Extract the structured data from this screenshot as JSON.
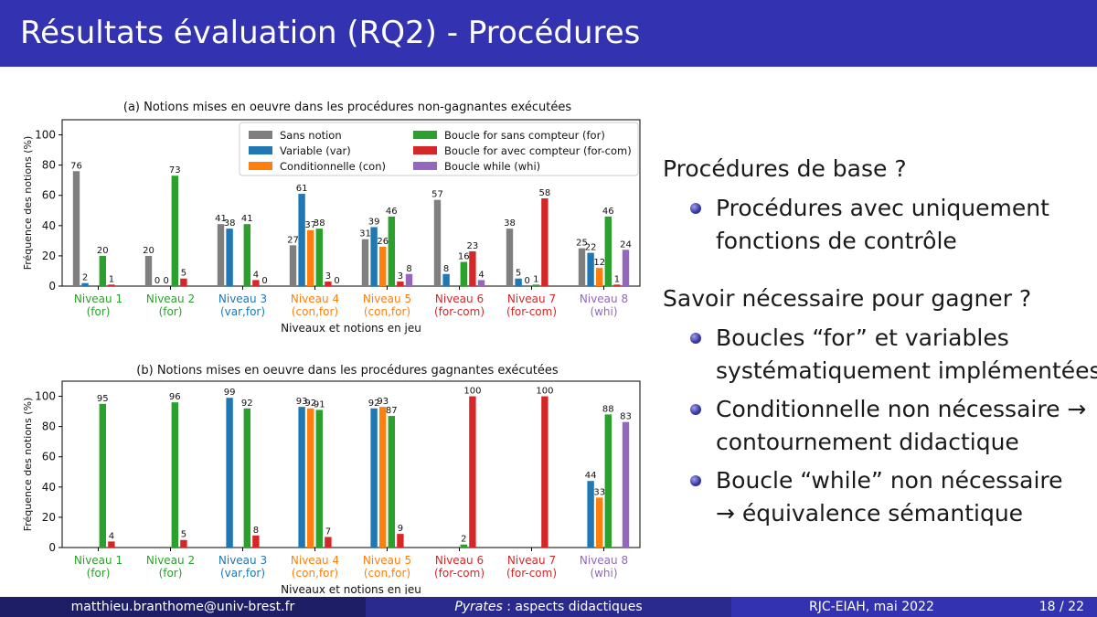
{
  "slide": {
    "title": "Résultats évaluation (RQ2) - Procédures"
  },
  "colors": {
    "header": "#3333b2",
    "sans_notion": "#7f7f7f",
    "var": "#1f77b4",
    "con": "#ff7f0e",
    "for": "#2ca02c",
    "for_com": "#d62728",
    "whi": "#9467bd"
  },
  "right_text": {
    "section1": "Procédures de base ?",
    "bullet1_line1": "Procédures avec uniquement",
    "bullet1_line2": "fonctions de contrôle",
    "section2": "Savoir nécessaire pour gagner ?",
    "bullet2_line1": "Boucles “for” et variables",
    "bullet2_line2": "systématiquement implémentées",
    "bullet3_line1": "Conditionnelle non nécessaire →",
    "bullet3_line2": "contournement didactique",
    "bullet4_line1": "Boucle “while” non nécessaire",
    "bullet4_line2": "→ équivalence sémantique",
    "bullet_icon": "ball-bullet-icon"
  },
  "footer": {
    "email": "matthieu.branthome@univ-brest.fr",
    "talk_italic": "Pyrates",
    "talk_rest": " : aspects didactiques",
    "conference": "RJC-EIAH, mai 2022",
    "page": "18 / 22"
  },
  "chart_data": [
    {
      "type": "bar",
      "title": "(a) Notions mises en oeuvre dans les procédures non-gagnantes exécutées",
      "xlabel": "Niveaux et notions en jeu",
      "ylabel": "Fréquence des notions (%)",
      "ylim": [
        0,
        110
      ],
      "yticks": [
        0,
        20,
        40,
        60,
        80,
        100
      ],
      "grid": false,
      "legend": "top-center",
      "categories": [
        {
          "line1": "Niveau 1",
          "line2": "(for)",
          "color": "#2ca02c"
        },
        {
          "line1": "Niveau 2",
          "line2": "(for)",
          "color": "#2ca02c"
        },
        {
          "line1": "Niveau 3",
          "line2": "(var,for)",
          "color": "#1f77b4"
        },
        {
          "line1": "Niveau 4",
          "line2": "(con,for)",
          "color": "#ff7f0e"
        },
        {
          "line1": "Niveau 5",
          "line2": "(con,for)",
          "color": "#ff7f0e"
        },
        {
          "line1": "Niveau 6",
          "line2": "(for-com)",
          "color": "#d62728"
        },
        {
          "line1": "Niveau 7",
          "line2": "(for-com)",
          "color": "#d62728"
        },
        {
          "line1": "Niveau 8",
          "line2": "(whi)",
          "color": "#9467bd"
        }
      ],
      "series": [
        {
          "name": "Sans notion",
          "color": "#7f7f7f",
          "values": [
            76,
            20,
            41,
            27,
            31,
            57,
            38,
            25
          ]
        },
        {
          "name": "Variable (var)",
          "color": "#1f77b4",
          "values": [
            2,
            0,
            38,
            61,
            39,
            8,
            5,
            22
          ]
        },
        {
          "name": "Conditionnelle (con)",
          "color": "#ff7f0e",
          "values": [
            null,
            0,
            null,
            37,
            26,
            null,
            0,
            12
          ]
        },
        {
          "name": "Boucle for sans compteur (for)",
          "color": "#2ca02c",
          "values": [
            20,
            73,
            41,
            38,
            46,
            16,
            1,
            46
          ]
        },
        {
          "name": "Boucle for avec compteur (for-com)",
          "color": "#d62728",
          "values": [
            1,
            5,
            4,
            3,
            3,
            23,
            58,
            1
          ]
        },
        {
          "name": "Boucle while (whi)",
          "color": "#9467bd",
          "values": [
            null,
            null,
            0,
            0,
            8,
            4,
            null,
            24
          ]
        }
      ]
    },
    {
      "type": "bar",
      "title": "(b) Notions mises en oeuvre dans les procédures gagnantes exécutées",
      "xlabel": "Niveaux et notions en jeu",
      "ylabel": "Fréquence des notions (%)",
      "ylim": [
        0,
        110
      ],
      "yticks": [
        0,
        20,
        40,
        60,
        80,
        100
      ],
      "grid": false,
      "legend": "none",
      "categories": [
        {
          "line1": "Niveau 1",
          "line2": "(for)",
          "color": "#2ca02c"
        },
        {
          "line1": "Niveau 2",
          "line2": "(for)",
          "color": "#2ca02c"
        },
        {
          "line1": "Niveau 3",
          "line2": "(var,for)",
          "color": "#1f77b4"
        },
        {
          "line1": "Niveau 4",
          "line2": "(con,for)",
          "color": "#ff7f0e"
        },
        {
          "line1": "Niveau 5",
          "line2": "(con,for)",
          "color": "#ff7f0e"
        },
        {
          "line1": "Niveau 6",
          "line2": "(for-com)",
          "color": "#d62728"
        },
        {
          "line1": "Niveau 7",
          "line2": "(for-com)",
          "color": "#d62728"
        },
        {
          "line1": "Niveau 8",
          "line2": "(whi)",
          "color": "#9467bd"
        }
      ],
      "series": [
        {
          "name": "Sans notion",
          "color": "#7f7f7f",
          "values": [
            null,
            null,
            null,
            null,
            null,
            null,
            null,
            null
          ]
        },
        {
          "name": "Variable (var)",
          "color": "#1f77b4",
          "values": [
            null,
            null,
            99,
            93,
            92,
            null,
            null,
            44
          ]
        },
        {
          "name": "Conditionnelle (con)",
          "color": "#ff7f0e",
          "values": [
            null,
            null,
            null,
            92,
            93,
            null,
            null,
            33
          ]
        },
        {
          "name": "Boucle for sans compteur (for)",
          "color": "#2ca02c",
          "values": [
            95,
            96,
            92,
            91,
            87,
            2,
            null,
            88
          ]
        },
        {
          "name": "Boucle for avec compteur (for-com)",
          "color": "#d62728",
          "values": [
            4,
            5,
            8,
            7,
            9,
            100,
            100,
            null
          ]
        },
        {
          "name": "Boucle while (whi)",
          "color": "#9467bd",
          "values": [
            null,
            null,
            null,
            null,
            null,
            null,
            null,
            83
          ]
        }
      ]
    }
  ]
}
